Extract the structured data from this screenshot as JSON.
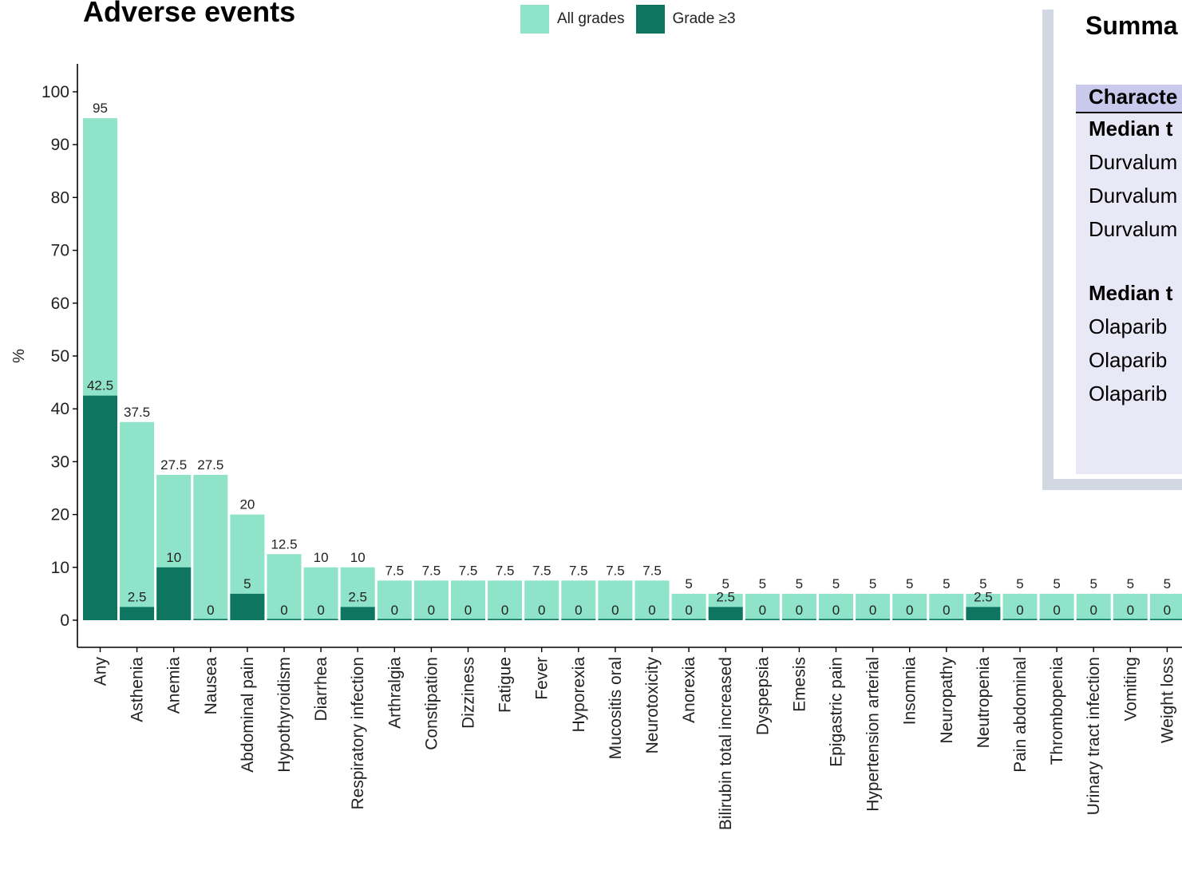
{
  "chart_data": {
    "type": "bar",
    "title": "Adverse events",
    "ylabel": "%",
    "xlabel": "",
    "ylim": [
      0,
      100
    ],
    "yticks": [
      0,
      10,
      20,
      30,
      40,
      50,
      60,
      70,
      80,
      90,
      100
    ],
    "grid": false,
    "legend_position": "top",
    "categories": [
      "Any",
      "Asthenia",
      "Anemia",
      "Nausea",
      "Abdominal pain",
      "Hypothyroidism",
      "Diarrhea",
      "Respiratory infection",
      "Arthralgia",
      "Constipation",
      "Dizziness",
      "Fatigue",
      "Fever",
      "Hyporexia",
      "Mucositis oral",
      "Neurotoxicity",
      "Anorexia",
      "Bilirubin total increased",
      "Dyspepsia",
      "Emesis",
      "Epigastric pain",
      "Hypertension arterial",
      "Insomnia",
      "Neuropathy",
      "Neutropenia",
      "Pain abdominal",
      "Thrombopenia",
      "Urinary tract infection",
      "Vomiting",
      "Weight loss"
    ],
    "series": [
      {
        "name": "All grades",
        "color": "#8ee3c8",
        "values": [
          95,
          37.5,
          27.5,
          27.5,
          20,
          12.5,
          10,
          10,
          7.5,
          7.5,
          7.5,
          7.5,
          7.5,
          7.5,
          7.5,
          7.5,
          5,
          5,
          5,
          5,
          5,
          5,
          5,
          5,
          5,
          5,
          5,
          5,
          5,
          5
        ]
      },
      {
        "name": "Grade ≥3",
        "color": "#0e7560",
        "values": [
          42.5,
          2.5,
          10,
          0,
          5,
          0,
          0,
          2.5,
          0,
          0,
          0,
          0,
          0,
          0,
          0,
          0,
          0,
          2.5,
          0,
          0,
          0,
          0,
          0,
          0,
          2.5,
          0,
          0,
          0,
          0,
          0
        ]
      }
    ]
  },
  "legend_labels": [
    "All grades",
    "Grade ≥3"
  ],
  "summary_panel": {
    "title": "Summa",
    "table": {
      "header": "Characte",
      "rows": [
        {
          "text": "Median t",
          "bold": true
        },
        {
          "text": "Durvalum",
          "bold": false
        },
        {
          "text": "Durvalum",
          "bold": false
        },
        {
          "text": "Durvalum",
          "bold": false
        },
        {
          "text": "Median t",
          "bold": true
        },
        {
          "text": "Olaparib",
          "bold": false
        },
        {
          "text": "Olaparib",
          "bold": false
        },
        {
          "text": "Olaparib",
          "bold": false
        }
      ]
    }
  }
}
